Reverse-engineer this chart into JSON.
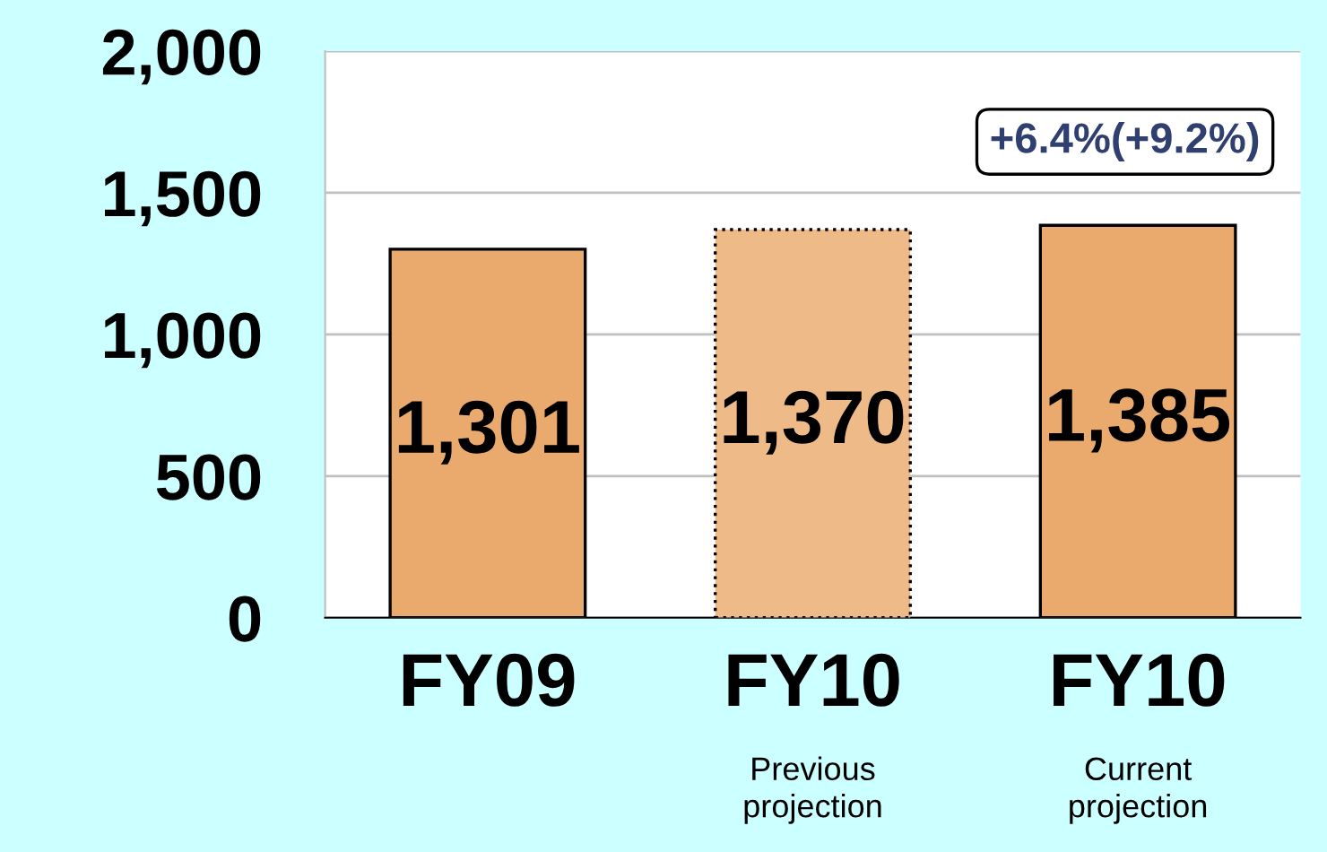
{
  "chart_data": {
    "type": "bar",
    "categories": [
      "FY09",
      "FY10\nPrevious\nprojection",
      "FY10\nCurrent\nprojection"
    ],
    "series": [
      {
        "color": "#eaaa6e",
        "values": [
          1301,
          null,
          1385
        ],
        "value_labels": [
          "1,301",
          null,
          "1,385"
        ],
        "line_style": "solid"
      },
      {
        "color": "#eebb88",
        "values": [
          null,
          1370,
          null
        ],
        "value_labels": [
          null,
          "1,370",
          null
        ],
        "line_style": "dotted"
      }
    ],
    "ylim": [
      0,
      2000
    ],
    "yticks": [
      0,
      500,
      {
        "value": 1000,
        "label": "1,000"
      },
      {
        "value": 1500,
        "label": "1,500"
      },
      {
        "value": 2000,
        "label": "2,000"
      }
    ],
    "grid": "y",
    "legend": false,
    "annotations": [
      "+6.4%(+9.2%)"
    ]
  }
}
